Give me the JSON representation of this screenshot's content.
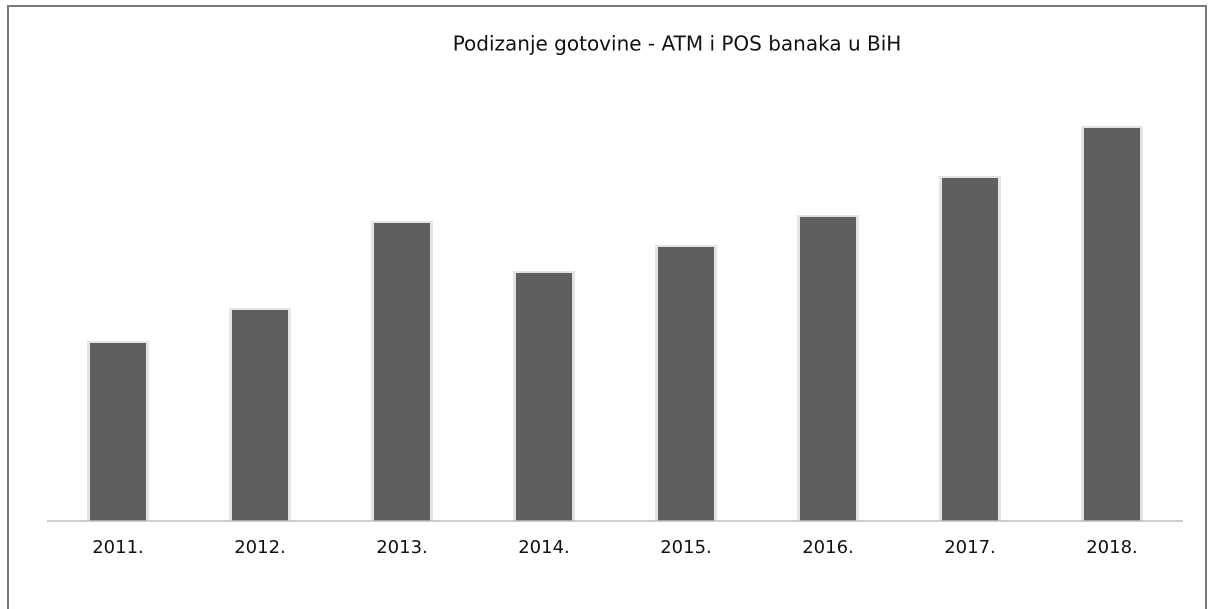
{
  "chart_data": {
    "type": "bar",
    "title": "Podizanje gotovine - ATM i POS banaka u BiH",
    "categories": [
      "2011.",
      "2012.",
      "2013.",
      "2014.",
      "2015.",
      "2016.",
      "2017.",
      "2018."
    ],
    "values": [
      178,
      211,
      298,
      248,
      274,
      304,
      343,
      393
    ],
    "color": "#5f5f5f",
    "ylim": [
      0,
      400
    ],
    "grid": false
  }
}
